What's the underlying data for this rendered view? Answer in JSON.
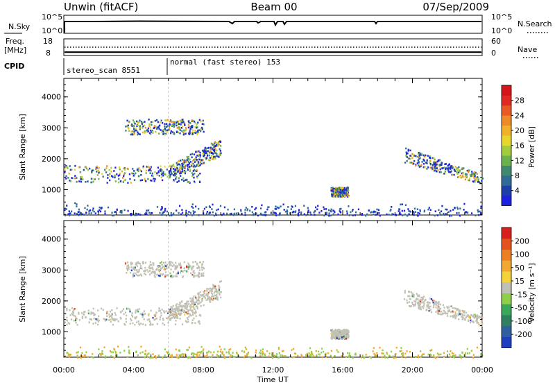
{
  "header": {
    "station": "Unwin (fitACF)",
    "beam": "Beam 00",
    "date": "07/Sep/2009"
  },
  "sky_panel": {
    "left_label": "N.Sky",
    "left_ticks": [
      "10^5",
      "10^0"
    ],
    "right_ticks": [
      "10^5",
      "10^0"
    ],
    "right_label": "N.Search",
    "right_line_style": "dotted"
  },
  "freq_panel": {
    "left_label_1": "Freq.",
    "left_label_2": "[MHz]",
    "left_ticks": [
      "18",
      "8"
    ],
    "right_ticks": [
      "60",
      "0"
    ],
    "right_label": "Nave",
    "right_line_style": "dotted",
    "freq_level_mhz": 10,
    "nave_level": 30
  },
  "cpid_panel": {
    "label": "CPID",
    "segments": [
      {
        "text": "stereo_scan 8551",
        "start_hour": 0
      },
      {
        "text": "normal (fast stereo) 153",
        "start_hour": 6
      }
    ]
  },
  "chart_data": [
    {
      "type": "heatmap",
      "title": "",
      "ylabel": "Slant Range [km]",
      "xlabel": "",
      "x_ticks": [
        "00:00",
        "04:00",
        "08:00",
        "12:00",
        "16:00",
        "20:00",
        "00:00"
      ],
      "xlim_hours": [
        0,
        24
      ],
      "ylim_km": [
        180,
        4600
      ],
      "y_ticks": [
        "1000",
        "2000",
        "3000",
        "4000"
      ],
      "colorbar": {
        "label": "Power [dB]",
        "ticks": [
          "4",
          "8",
          "12",
          "16",
          "20",
          "24",
          "28"
        ],
        "colors": [
          "#1e22e0",
          "#1d3fa8",
          "#2f6b96",
          "#3f8a6e",
          "#6cb14f",
          "#a2cc3d",
          "#e9d62d",
          "#f2b12a",
          "#ef8a2a",
          "#e75a25",
          "#de2a22",
          "#d6141c"
        ]
      },
      "patches": [
        {
          "name": "morning-band",
          "t0": 0.0,
          "t1": 7.8,
          "r0": 1250,
          "r1": 1800,
          "value": "mixed"
        },
        {
          "name": "morning-rising",
          "t0": 6.0,
          "t1": 9.0,
          "r0": 1400,
          "r1": 2700,
          "value": "mixed"
        },
        {
          "name": "upper-patch",
          "t0": 3.5,
          "t1": 8.0,
          "r0": 2800,
          "r1": 3300,
          "value": "mixed"
        },
        {
          "name": "afternoon-spot",
          "t0": 15.3,
          "t1": 16.3,
          "r0": 800,
          "r1": 1100,
          "value": "mixed"
        },
        {
          "name": "evening-band",
          "t0": 19.5,
          "t1": 24.0,
          "r0": 1300,
          "r1": 2400,
          "value": "mixed"
        },
        {
          "name": "ground-scatter-floor",
          "t0": 0.0,
          "t1": 24.0,
          "r0": 180,
          "r1": 500,
          "value": "low"
        }
      ]
    },
    {
      "type": "heatmap",
      "title": "",
      "ylabel": "Slant Range [km]",
      "xlabel": "Time UT",
      "x_ticks": [
        "00:00",
        "04:00",
        "08:00",
        "12:00",
        "16:00",
        "20:00",
        "00:00"
      ],
      "xlim_hours": [
        0,
        24
      ],
      "ylim_km": [
        180,
        4600
      ],
      "y_ticks": [
        "1000",
        "2000",
        "3000",
        "4000"
      ],
      "colorbar": {
        "label": "Velocity [m s⁻¹]",
        "ticks": [
          "200",
          "100",
          "50",
          "15",
          "-15",
          "-50",
          "-100",
          "-200"
        ],
        "colors": [
          "#1f3fbf",
          "#2f5f9f",
          "#2f8060",
          "#39a85a",
          "#8fd04a",
          "#c0c0b4",
          "#f4d23a",
          "#f0a830",
          "#ec7f24",
          "#e4521e",
          "#d8201a"
        ]
      },
      "patches": [
        {
          "name": "morning-band",
          "t0": 0.0,
          "t1": 7.8,
          "r0": 1250,
          "r1": 1800,
          "value": "grey"
        },
        {
          "name": "morning-rising",
          "t0": 6.0,
          "t1": 9.0,
          "r0": 1400,
          "r1": 2700,
          "value": "grey"
        },
        {
          "name": "upper-patch",
          "t0": 3.5,
          "t1": 8.0,
          "r0": 2800,
          "r1": 3300,
          "value": "grey"
        },
        {
          "name": "afternoon-spot",
          "t0": 15.3,
          "t1": 16.3,
          "r0": 800,
          "r1": 1100,
          "value": "grey"
        },
        {
          "name": "evening-band",
          "t0": 19.5,
          "t1": 24.0,
          "r0": 1300,
          "r1": 2400,
          "value": "grey"
        },
        {
          "name": "ground-scatter-floor",
          "t0": 0.0,
          "t1": 24.0,
          "r0": 180,
          "r1": 500,
          "value": "orange-green"
        }
      ]
    }
  ]
}
